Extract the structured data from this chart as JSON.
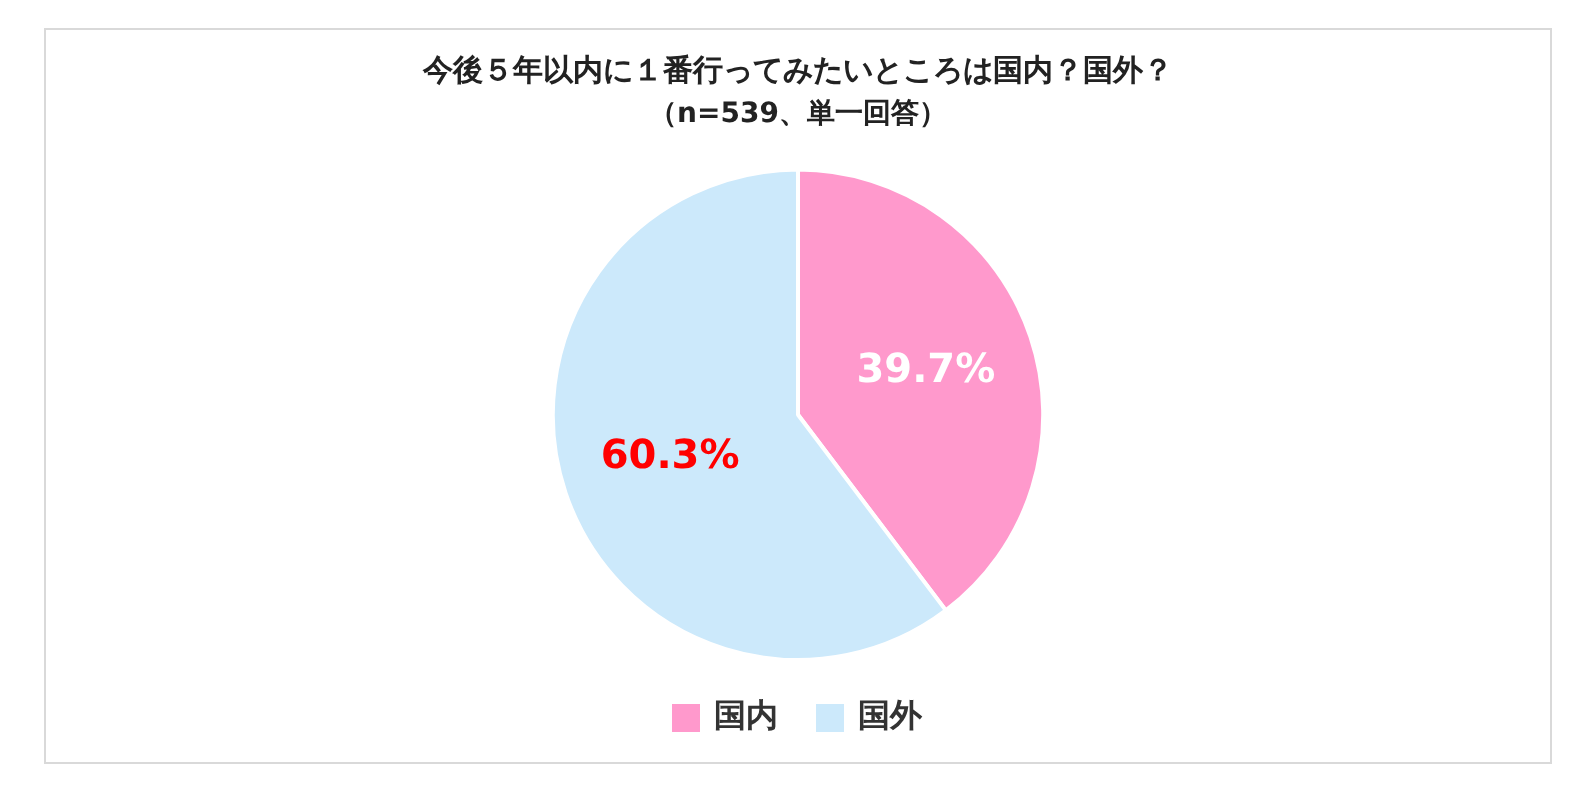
{
  "chart_data": {
    "type": "pie",
    "title": "今後５年以内に１番行ってみたいところは国内？国外？",
    "subtitle": "（n=539、単一回答）",
    "categories": [
      "国内",
      "国外"
    ],
    "values": [
      39.7,
      60.3
    ],
    "colors": [
      "#ff99cc",
      "#cce9fb"
    ],
    "value_labels": [
      "39.7%",
      "60.3%"
    ],
    "legend": "bottom"
  }
}
